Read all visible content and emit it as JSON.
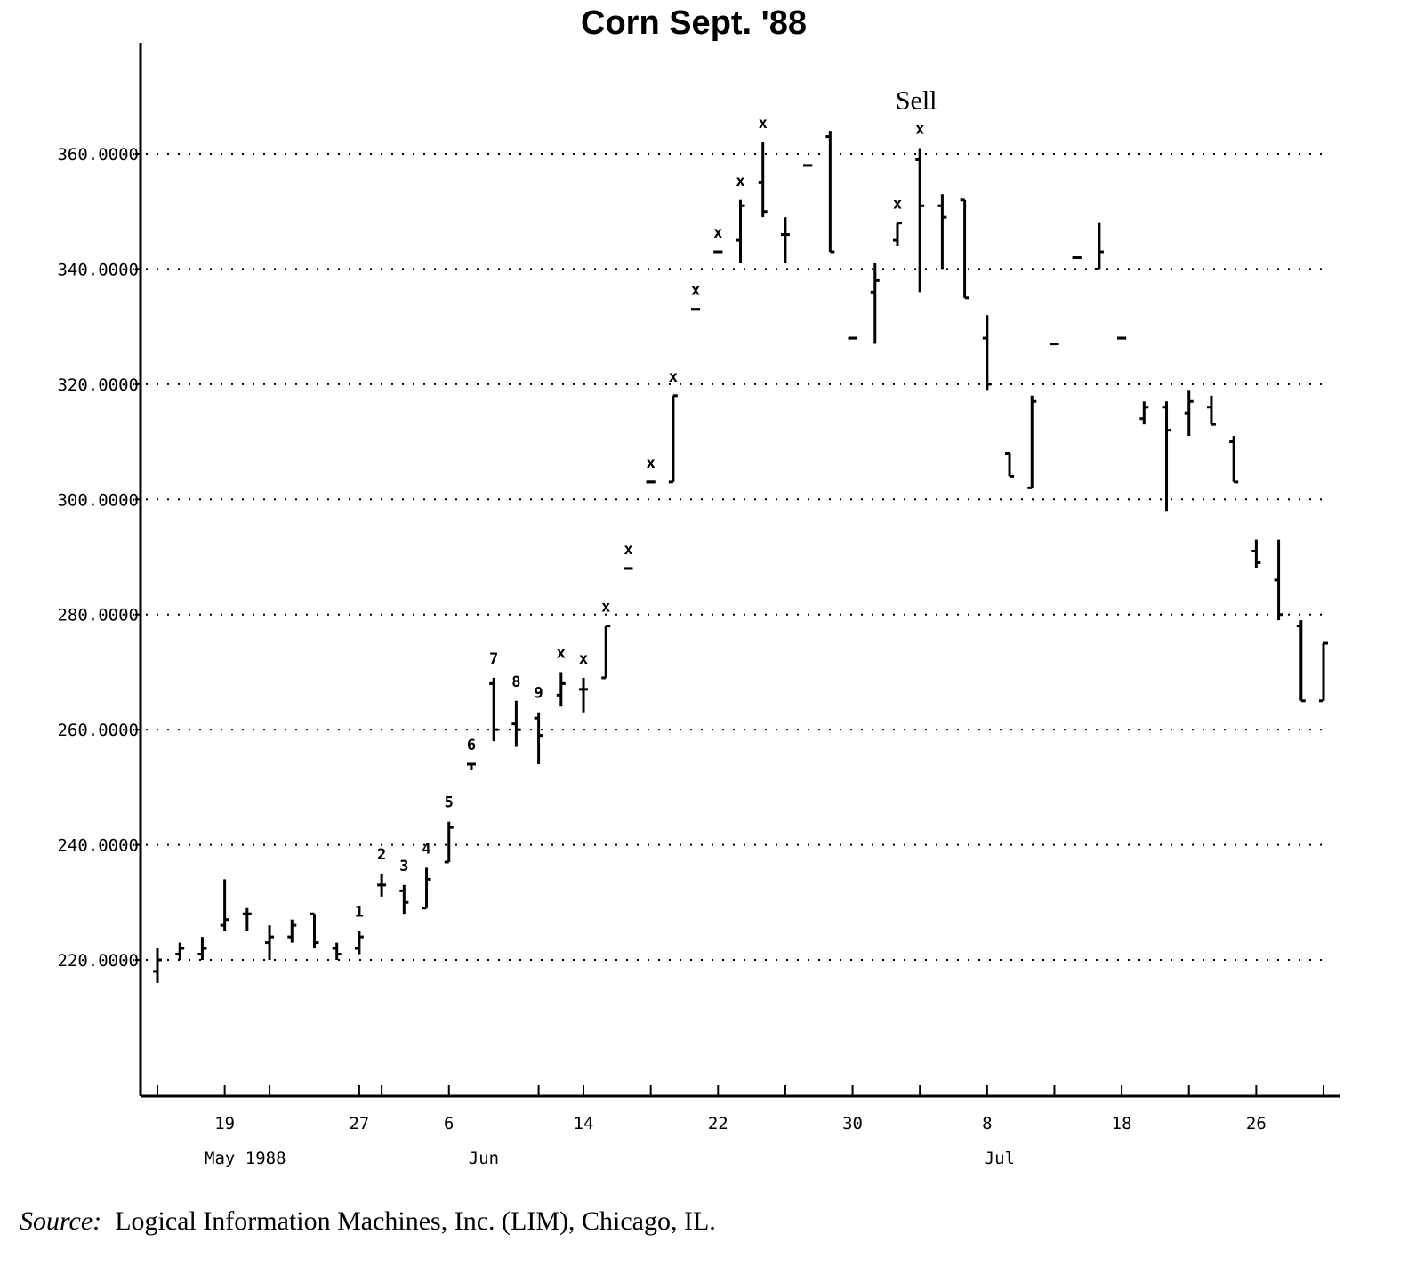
{
  "chart_data": {
    "type": "bar",
    "subtype": "OHLC",
    "title": "Corn Sept. '88",
    "xlabel": "",
    "ylabel": "",
    "ylim": [
      195,
      375
    ],
    "y_ticks": [
      {
        "value": 220,
        "label": "220.0000"
      },
      {
        "value": 240,
        "label": "240.0000"
      },
      {
        "value": 260,
        "label": "260.0000"
      },
      {
        "value": 280,
        "label": "280.0000"
      },
      {
        "value": 300,
        "label": "300.0000"
      },
      {
        "value": 320,
        "label": "320.0000"
      },
      {
        "value": 340,
        "label": "340.0000"
      },
      {
        "value": 360,
        "label": "360.0000"
      }
    ],
    "grid": "horizontal dotted",
    "x_tick_labels": [
      "19",
      "27",
      "6",
      "14",
      "22",
      "30",
      "8",
      "18",
      "26"
    ],
    "x_month_labels": [
      "May 1988",
      "Jun",
      "Jul"
    ],
    "annotations": [
      {
        "text": "Sell",
        "date": "1988-07-05"
      }
    ],
    "bars": [
      {
        "date": "1988-05-16",
        "high": 222,
        "low": 216,
        "open": 218,
        "close": 220,
        "label": ""
      },
      {
        "date": "1988-05-17",
        "high": 223,
        "low": 220,
        "open": 221,
        "close": 222,
        "label": ""
      },
      {
        "date": "1988-05-18",
        "high": 224,
        "low": 220,
        "open": 221,
        "close": 222,
        "label": ""
      },
      {
        "date": "1988-05-19",
        "high": 234,
        "low": 225,
        "open": 226,
        "close": 227,
        "label": ""
      },
      {
        "date": "1988-05-20",
        "high": 229,
        "low": 225,
        "open": 228,
        "close": 228,
        "label": ""
      },
      {
        "date": "1988-05-23",
        "high": 226,
        "low": 220,
        "open": 223,
        "close": 224,
        "label": ""
      },
      {
        "date": "1988-05-24",
        "high": 227,
        "low": 223,
        "open": 224,
        "close": 226,
        "label": ""
      },
      {
        "date": "1988-05-25",
        "high": 228,
        "low": 222,
        "open": 228,
        "close": 223,
        "label": ""
      },
      {
        "date": "1988-05-26",
        "high": 223,
        "low": 220,
        "open": 222,
        "close": 221,
        "label": ""
      },
      {
        "date": "1988-05-27",
        "high": 225,
        "low": 221,
        "open": 222,
        "close": 224,
        "label": "1"
      },
      {
        "date": "1988-06-01",
        "high": 235,
        "low": 231,
        "open": 233,
        "close": 233,
        "label": "2"
      },
      {
        "date": "1988-06-02",
        "high": 233,
        "low": 228,
        "open": 232,
        "close": 230,
        "label": "3"
      },
      {
        "date": "1988-06-03",
        "high": 236,
        "low": 229,
        "open": 229,
        "close": 234,
        "label": "4"
      },
      {
        "date": "1988-06-06",
        "high": 244,
        "low": 237,
        "open": 237,
        "close": 243,
        "label": "5"
      },
      {
        "date": "1988-06-07",
        "high": 254,
        "low": 253,
        "open": 254,
        "close": 254,
        "label": "6"
      },
      {
        "date": "1988-06-08",
        "high": 269,
        "low": 258,
        "open": 268,
        "close": 260,
        "label": "7"
      },
      {
        "date": "1988-06-09",
        "high": 265,
        "low": 257,
        "open": 261,
        "close": 260,
        "label": "8"
      },
      {
        "date": "1988-06-10",
        "high": 263,
        "low": 254,
        "open": 262,
        "close": 259,
        "label": "9"
      },
      {
        "date": "1988-06-13",
        "high": 270,
        "low": 264,
        "open": 266,
        "close": 268,
        "label": "x"
      },
      {
        "date": "1988-06-14",
        "high": 269,
        "low": 263,
        "open": 267,
        "close": 267,
        "label": "x"
      },
      {
        "date": "1988-06-15",
        "high": 278,
        "low": 269,
        "open": 269,
        "close": 278,
        "label": "x"
      },
      {
        "date": "1988-06-16",
        "high": 288,
        "low": 288,
        "open": 288,
        "close": 288,
        "label": "x"
      },
      {
        "date": "1988-06-17",
        "high": 303,
        "low": 303,
        "open": 303,
        "close": 303,
        "label": "x"
      },
      {
        "date": "1988-06-20",
        "high": 318,
        "low": 303,
        "open": 303,
        "close": 318,
        "label": "x"
      },
      {
        "date": "1988-06-21",
        "high": 333,
        "low": 333,
        "open": 333,
        "close": 333,
        "label": "x"
      },
      {
        "date": "1988-06-22",
        "high": 343,
        "low": 343,
        "open": 343,
        "close": 343,
        "label": "x"
      },
      {
        "date": "1988-06-23",
        "high": 352,
        "low": 341,
        "open": 345,
        "close": 351,
        "label": "x"
      },
      {
        "date": "1988-06-24",
        "high": 362,
        "low": 349,
        "open": 355,
        "close": 350,
        "label": "x"
      },
      {
        "date": "1988-06-27",
        "high": 349,
        "low": 341,
        "open": 346,
        "close": 346,
        "label": ""
      },
      {
        "date": "1988-06-28",
        "high": 358,
        "low": 358,
        "open": 358,
        "close": 358,
        "label": ""
      },
      {
        "date": "1988-06-29",
        "high": 364,
        "low": 343,
        "open": 363,
        "close": 343,
        "label": ""
      },
      {
        "date": "1988-06-30",
        "high": 328,
        "low": 328,
        "open": 328,
        "close": 328,
        "label": ""
      },
      {
        "date": "1988-07-01",
        "high": 341,
        "low": 327,
        "open": 336,
        "close": 338,
        "label": ""
      },
      {
        "date": "1988-07-04",
        "high": 348,
        "low": 344,
        "open": 345,
        "close": 348,
        "label": "x"
      },
      {
        "date": "1988-07-05",
        "high": 361,
        "low": 336,
        "open": 359,
        "close": 351,
        "label": "x"
      },
      {
        "date": "1988-07-06",
        "high": 353,
        "low": 340,
        "open": 351,
        "close": 349,
        "label": ""
      },
      {
        "date": "1988-07-07",
        "high": 352,
        "low": 335,
        "open": 352,
        "close": 335,
        "label": ""
      },
      {
        "date": "1988-07-08",
        "high": 332,
        "low": 319,
        "open": 328,
        "close": 320,
        "label": ""
      },
      {
        "date": "1988-07-11",
        "high": 308,
        "low": 304,
        "open": 308,
        "close": 304,
        "label": ""
      },
      {
        "date": "1988-07-12",
        "high": 318,
        "low": 302,
        "open": 302,
        "close": 317,
        "label": ""
      },
      {
        "date": "1988-07-13",
        "high": 327,
        "low": 327,
        "open": 327,
        "close": 327,
        "label": ""
      },
      {
        "date": "1988-07-14",
        "high": 342,
        "low": 342,
        "open": 342,
        "close": 342,
        "label": ""
      },
      {
        "date": "1988-07-15",
        "high": 348,
        "low": 340,
        "open": 340,
        "close": 343,
        "label": ""
      },
      {
        "date": "1988-07-18",
        "high": 328,
        "low": 328,
        "open": 328,
        "close": 328,
        "label": ""
      },
      {
        "date": "1988-07-19",
        "high": 317,
        "low": 313,
        "open": 314,
        "close": 316,
        "label": ""
      },
      {
        "date": "1988-07-20",
        "high": 317,
        "low": 298,
        "open": 316,
        "close": 312,
        "label": ""
      },
      {
        "date": "1988-07-21",
        "high": 319,
        "low": 311,
        "open": 315,
        "close": 317,
        "label": ""
      },
      {
        "date": "1988-07-22",
        "high": 318,
        "low": 313,
        "open": 316,
        "close": 313,
        "label": ""
      },
      {
        "date": "1988-07-25",
        "high": 311,
        "low": 303,
        "open": 310,
        "close": 303,
        "label": ""
      },
      {
        "date": "1988-07-26",
        "high": 293,
        "low": 288,
        "open": 291,
        "close": 289,
        "label": ""
      },
      {
        "date": "1988-07-27",
        "high": 293,
        "low": 279,
        "open": 286,
        "close": 280,
        "label": ""
      },
      {
        "date": "1988-07-28",
        "high": 279,
        "low": 265,
        "open": 278,
        "close": 265,
        "label": ""
      },
      {
        "date": "1988-07-29",
        "high": 275,
        "low": 265,
        "open": 265,
        "close": 275,
        "label": ""
      }
    ]
  },
  "source": {
    "label": "Source:",
    "text": "Logical Information Machines, Inc. (LIM), Chicago, IL."
  }
}
